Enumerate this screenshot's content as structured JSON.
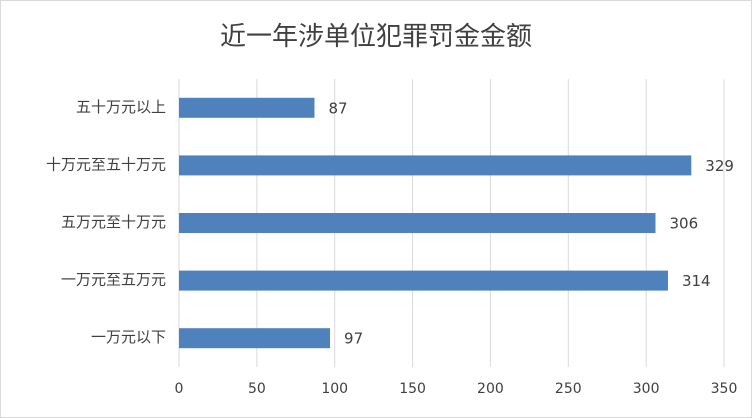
{
  "chart_data": {
    "type": "bar",
    "orientation": "horizontal",
    "title": "近一年涉单位犯罪罚金金额",
    "categories": [
      "五十万元以上",
      "十万元至五十万元",
      "五万元至十万元",
      "一万元至五万元",
      "一万元以下"
    ],
    "values": [
      87,
      329,
      306,
      314,
      97
    ],
    "color": "#4f81bd",
    "xlim": [
      0,
      350
    ],
    "xticks": [
      0,
      50,
      100,
      150,
      200,
      250,
      300,
      350
    ],
    "grid": true
  }
}
